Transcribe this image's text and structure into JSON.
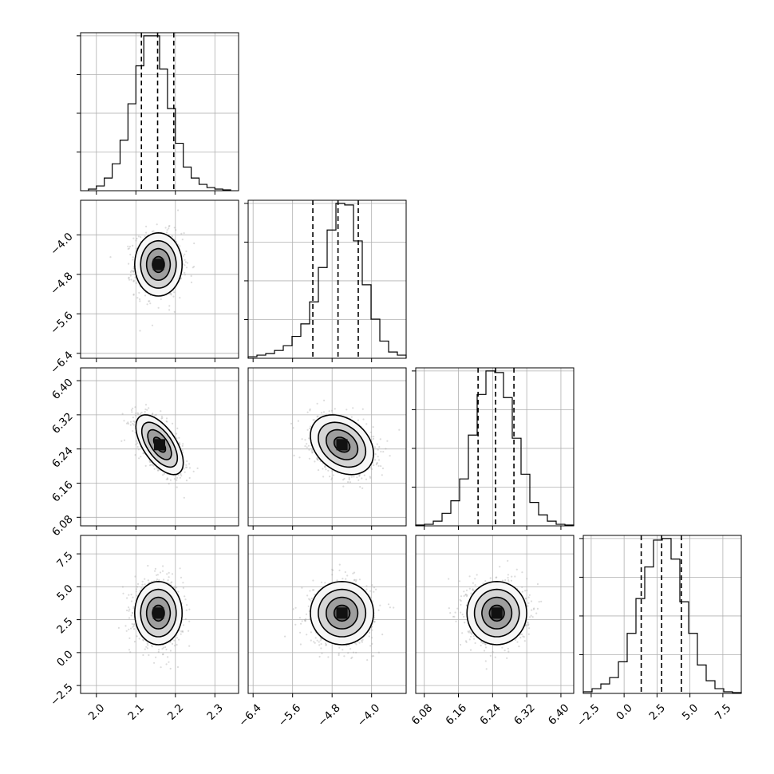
{
  "chart_data": {
    "type": "corner",
    "parameters": [
      {
        "ticks": [
          2.0,
          2.1,
          2.2,
          2.3
        ],
        "tick_labels": [
          "2.0",
          "2.1",
          "2.2",
          "2.3"
        ],
        "range": [
          1.96,
          2.36
        ]
      },
      {
        "ticks": [
          -6.4,
          -5.6,
          -4.8,
          -4.0
        ],
        "tick_labels": [
          "−6.4",
          "−5.6",
          "−4.8",
          "−4.0"
        ],
        "range": [
          -6.5,
          -3.3
        ]
      },
      {
        "ticks": [
          6.08,
          6.16,
          6.24,
          6.32,
          6.4
        ],
        "tick_labels": [
          "6.08",
          "6.16",
          "6.24",
          "6.32",
          "6.40"
        ],
        "range": [
          6.06,
          6.43
        ]
      },
      {
        "ticks": [
          -2.5,
          0.0,
          2.5,
          5.0,
          7.5
        ],
        "tick_labels": [
          "−2.5",
          "0.0",
          "2.5",
          "5.0",
          "7.5"
        ],
        "range": [
          -3.1,
          8.9
        ]
      }
    ],
    "histograms": [
      {
        "edges_range": [
          1.98,
          2.34
        ],
        "counts": [
          1,
          3,
          8,
          17,
          32,
          55,
          79,
          98,
          98,
          77,
          52,
          30,
          15,
          8,
          4,
          2,
          1,
          0.5
        ]
      },
      {
        "edges_range": [
          -6.5,
          -3.3
        ],
        "counts": [
          1,
          2,
          3,
          5,
          8,
          14,
          22,
          36,
          58,
          82,
          99,
          98,
          75,
          47,
          25,
          11,
          4,
          2
        ]
      },
      {
        "edges_range": [
          6.06,
          6.43
        ],
        "counts": [
          0.5,
          1,
          3,
          8,
          16,
          30,
          58,
          84,
          99,
          98,
          82,
          56,
          33,
          15,
          7,
          3,
          1,
          0.5
        ]
      },
      {
        "edges_range": [
          -3.1,
          8.9
        ],
        "counts": [
          1,
          3,
          6,
          10,
          20,
          38,
          60,
          80,
          97,
          98,
          85,
          58,
          38,
          18,
          8,
          3,
          1,
          0.5
        ]
      }
    ],
    "quantiles": [
      [
        2.114,
        2.155,
        2.196
      ],
      [
        -5.19,
        -4.68,
        -4.27
      ],
      [
        6.206,
        6.247,
        6.29
      ],
      [
        1.3,
        2.85,
        4.35
      ]
    ],
    "pairs": [
      {
        "row": 1,
        "col": 0,
        "mean": [
          2.157,
          -4.6
        ],
        "std": [
          0.03,
          0.32
        ],
        "rho": 0.0
      },
      {
        "row": 2,
        "col": 0,
        "mean": [
          2.16,
          6.25
        ],
        "std": [
          0.03,
          0.035
        ],
        "rho": -0.6
      },
      {
        "row": 2,
        "col": 1,
        "mean": [
          -4.6,
          6.25
        ],
        "std": [
          0.32,
          0.035
        ],
        "rho": -0.3
      },
      {
        "row": 3,
        "col": 0,
        "mean": [
          2.157,
          3.0
        ],
        "std": [
          0.03,
          1.2
        ],
        "rho": 0.0
      },
      {
        "row": 3,
        "col": 1,
        "mean": [
          -4.6,
          3.0
        ],
        "std": [
          0.32,
          1.2
        ],
        "rho": 0.0
      },
      {
        "row": 3,
        "col": 2,
        "mean": [
          6.25,
          3.0
        ],
        "std": [
          0.035,
          1.2
        ],
        "rho": 0.0
      }
    ],
    "contour_levels_sigma": [
      0.5,
      1.0,
      1.5,
      2.0
    ],
    "grid": true,
    "colors": {
      "line": "#000000",
      "scatter": "#9a9a9a",
      "grid": "#b0b0b0"
    }
  }
}
